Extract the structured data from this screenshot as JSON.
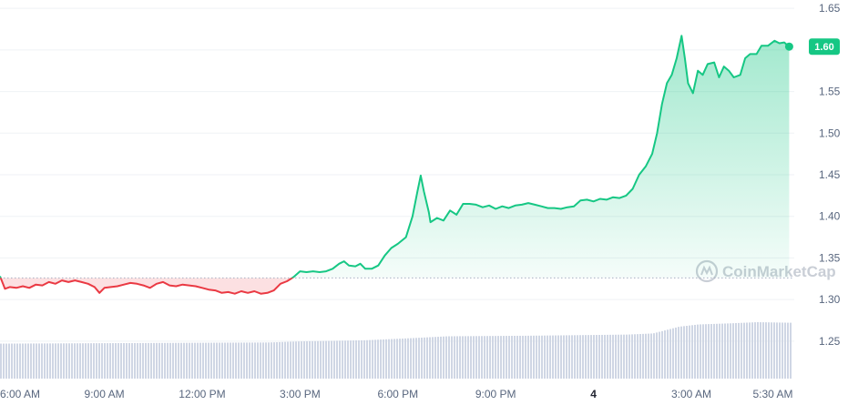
{
  "watermark": {
    "text": "CoinMarketCap"
  },
  "last_price_label": "1.60",
  "colors": {
    "up": "#16c784",
    "down": "#ea3943",
    "grid": "#eff2f5",
    "volume": "#cfd6e4",
    "badge": "#16c784",
    "baseline": "#a6b0c3"
  },
  "chart_data": {
    "type": "line",
    "title": "",
    "xlabel": "",
    "ylabel": "",
    "ylim": [
      1.205,
      1.66
    ],
    "y_ticks": [
      "1.65",
      "1.60",
      "1.55",
      "1.50",
      "1.45",
      "1.40",
      "1.35",
      "1.30",
      "1.25"
    ],
    "x_ticks": [
      {
        "label": "6:00 AM",
        "h": 6,
        "bold": false
      },
      {
        "label": "9:00 AM",
        "h": 9,
        "bold": false
      },
      {
        "label": "12:00 PM",
        "h": 12,
        "bold": false
      },
      {
        "label": "3:00 PM",
        "h": 15,
        "bold": false
      },
      {
        "label": "6:00 PM",
        "h": 18,
        "bold": false
      },
      {
        "label": "9:00 PM",
        "h": 21,
        "bold": false
      },
      {
        "label": "4",
        "h": 24,
        "bold": true
      },
      {
        "label": "3:00 AM",
        "h": 27,
        "bold": false
      },
      {
        "label": "5:30 AM",
        "h": 29.5,
        "bold": false
      }
    ],
    "x_range_hours": [
      5.8,
      30.1
    ],
    "reference_price": 1.326,
    "series": [
      {
        "points": [
          [
            5.8,
            1.328
          ],
          [
            5.95,
            1.313
          ],
          [
            6.1,
            1.315
          ],
          [
            6.3,
            1.314
          ],
          [
            6.5,
            1.316
          ],
          [
            6.7,
            1.314
          ],
          [
            6.9,
            1.318
          ],
          [
            7.1,
            1.317
          ],
          [
            7.3,
            1.321
          ],
          [
            7.5,
            1.319
          ],
          [
            7.7,
            1.323
          ],
          [
            7.9,
            1.321
          ],
          [
            8.1,
            1.323
          ],
          [
            8.3,
            1.321
          ],
          [
            8.5,
            1.319
          ],
          [
            8.7,
            1.315
          ],
          [
            8.85,
            1.308
          ],
          [
            9.0,
            1.314
          ],
          [
            9.2,
            1.315
          ],
          [
            9.4,
            1.316
          ],
          [
            9.6,
            1.318
          ],
          [
            9.8,
            1.32
          ],
          [
            10.0,
            1.319
          ],
          [
            10.2,
            1.317
          ],
          [
            10.4,
            1.314
          ],
          [
            10.6,
            1.319
          ],
          [
            10.8,
            1.321
          ],
          [
            11.0,
            1.317
          ],
          [
            11.2,
            1.316
          ],
          [
            11.4,
            1.318
          ],
          [
            11.6,
            1.317
          ],
          [
            11.8,
            1.316
          ],
          [
            12.0,
            1.314
          ],
          [
            12.2,
            1.312
          ],
          [
            12.4,
            1.311
          ],
          [
            12.6,
            1.308
          ],
          [
            12.8,
            1.309
          ],
          [
            13.0,
            1.307
          ],
          [
            13.2,
            1.31
          ],
          [
            13.4,
            1.308
          ],
          [
            13.6,
            1.31
          ],
          [
            13.8,
            1.307
          ],
          [
            14.0,
            1.308
          ],
          [
            14.2,
            1.311
          ],
          [
            14.4,
            1.319
          ],
          [
            14.6,
            1.322
          ],
          [
            14.8,
            1.327
          ],
          [
            15.0,
            1.334
          ],
          [
            15.2,
            1.333
          ],
          [
            15.4,
            1.334
          ],
          [
            15.6,
            1.333
          ],
          [
            15.8,
            1.334
          ],
          [
            16.0,
            1.337
          ],
          [
            16.2,
            1.343
          ],
          [
            16.35,
            1.346
          ],
          [
            16.5,
            1.341
          ],
          [
            16.7,
            1.34
          ],
          [
            16.85,
            1.343
          ],
          [
            17.0,
            1.337
          ],
          [
            17.2,
            1.337
          ],
          [
            17.4,
            1.341
          ],
          [
            17.6,
            1.353
          ],
          [
            17.8,
            1.362
          ],
          [
            18.0,
            1.367
          ],
          [
            18.25,
            1.375
          ],
          [
            18.45,
            1.4
          ],
          [
            18.6,
            1.43
          ],
          [
            18.7,
            1.449
          ],
          [
            18.8,
            1.43
          ],
          [
            18.95,
            1.405
          ],
          [
            19.0,
            1.393
          ],
          [
            19.2,
            1.398
          ],
          [
            19.4,
            1.395
          ],
          [
            19.6,
            1.407
          ],
          [
            19.8,
            1.402
          ],
          [
            20.0,
            1.415
          ],
          [
            20.2,
            1.415
          ],
          [
            20.4,
            1.414
          ],
          [
            20.6,
            1.411
          ],
          [
            20.8,
            1.413
          ],
          [
            21.0,
            1.409
          ],
          [
            21.2,
            1.412
          ],
          [
            21.4,
            1.41
          ],
          [
            21.6,
            1.413
          ],
          [
            21.8,
            1.414
          ],
          [
            22.0,
            1.416
          ],
          [
            22.2,
            1.414
          ],
          [
            22.4,
            1.412
          ],
          [
            22.6,
            1.41
          ],
          [
            22.8,
            1.41
          ],
          [
            23.0,
            1.409
          ],
          [
            23.2,
            1.411
          ],
          [
            23.4,
            1.412
          ],
          [
            23.6,
            1.419
          ],
          [
            23.8,
            1.42
          ],
          [
            24.0,
            1.418
          ],
          [
            24.2,
            1.421
          ],
          [
            24.4,
            1.42
          ],
          [
            24.6,
            1.423
          ],
          [
            24.8,
            1.422
          ],
          [
            25.0,
            1.425
          ],
          [
            25.2,
            1.433
          ],
          [
            25.4,
            1.45
          ],
          [
            25.6,
            1.46
          ],
          [
            25.8,
            1.475
          ],
          [
            25.95,
            1.5
          ],
          [
            26.1,
            1.535
          ],
          [
            26.25,
            1.56
          ],
          [
            26.4,
            1.57
          ],
          [
            26.55,
            1.59
          ],
          [
            26.7,
            1.617
          ],
          [
            26.8,
            1.59
          ],
          [
            26.9,
            1.56
          ],
          [
            27.05,
            1.548
          ],
          [
            27.2,
            1.575
          ],
          [
            27.35,
            1.57
          ],
          [
            27.5,
            1.583
          ],
          [
            27.7,
            1.585
          ],
          [
            27.85,
            1.567
          ],
          [
            28.0,
            1.58
          ],
          [
            28.15,
            1.575
          ],
          [
            28.3,
            1.567
          ],
          [
            28.5,
            1.57
          ],
          [
            28.65,
            1.59
          ],
          [
            28.8,
            1.595
          ],
          [
            29.0,
            1.595
          ],
          [
            29.15,
            1.605
          ],
          [
            29.35,
            1.605
          ],
          [
            29.55,
            1.611
          ],
          [
            29.7,
            1.608
          ],
          [
            29.85,
            1.609
          ],
          [
            30.0,
            1.604
          ]
        ]
      }
    ],
    "volume": {
      "x": [
        5.8,
        14.0,
        15.0,
        17.0,
        18.5,
        19.5,
        22.0,
        25.0,
        25.8,
        26.2,
        26.6,
        27.2,
        28.2,
        29.0,
        30.0
      ],
      "values": [
        0.62,
        0.64,
        0.66,
        0.68,
        0.72,
        0.75,
        0.76,
        0.78,
        0.8,
        0.86,
        0.92,
        0.96,
        0.98,
        1.0,
        0.99
      ]
    }
  }
}
